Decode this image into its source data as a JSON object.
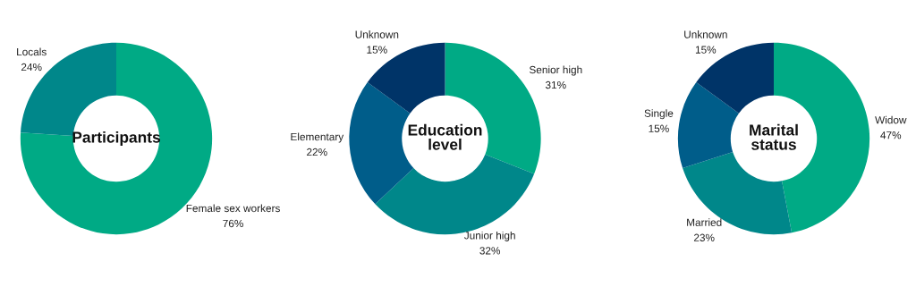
{
  "chart_data": [
    {
      "type": "donut",
      "title": "Participants",
      "categories": [
        "Female sex workers",
        "Locals"
      ],
      "values": [
        76,
        24
      ],
      "colors": [
        "#00aa85",
        "#00878a"
      ],
      "value_labels": [
        "76%",
        "24%"
      ]
    },
    {
      "type": "donut",
      "title": "Education\nlevel",
      "categories": [
        "Senior high",
        "Junior high",
        "Elementary",
        "Unknown"
      ],
      "values": [
        31,
        32,
        22,
        15
      ],
      "colors": [
        "#00aa85",
        "#00878a",
        "#005d8a",
        "#003468"
      ],
      "value_labels": [
        "31%",
        "32%",
        "22%",
        "15%"
      ]
    },
    {
      "type": "donut",
      "title": "Marital\nstatus",
      "categories": [
        "Widow",
        "Married",
        "Single",
        "Unknown"
      ],
      "values": [
        47,
        23,
        15,
        15
      ],
      "colors": [
        "#00aa85",
        "#00878a",
        "#005d8a",
        "#003468"
      ],
      "value_labels": [
        "47%",
        "23%",
        "15%",
        "15%"
      ]
    }
  ]
}
